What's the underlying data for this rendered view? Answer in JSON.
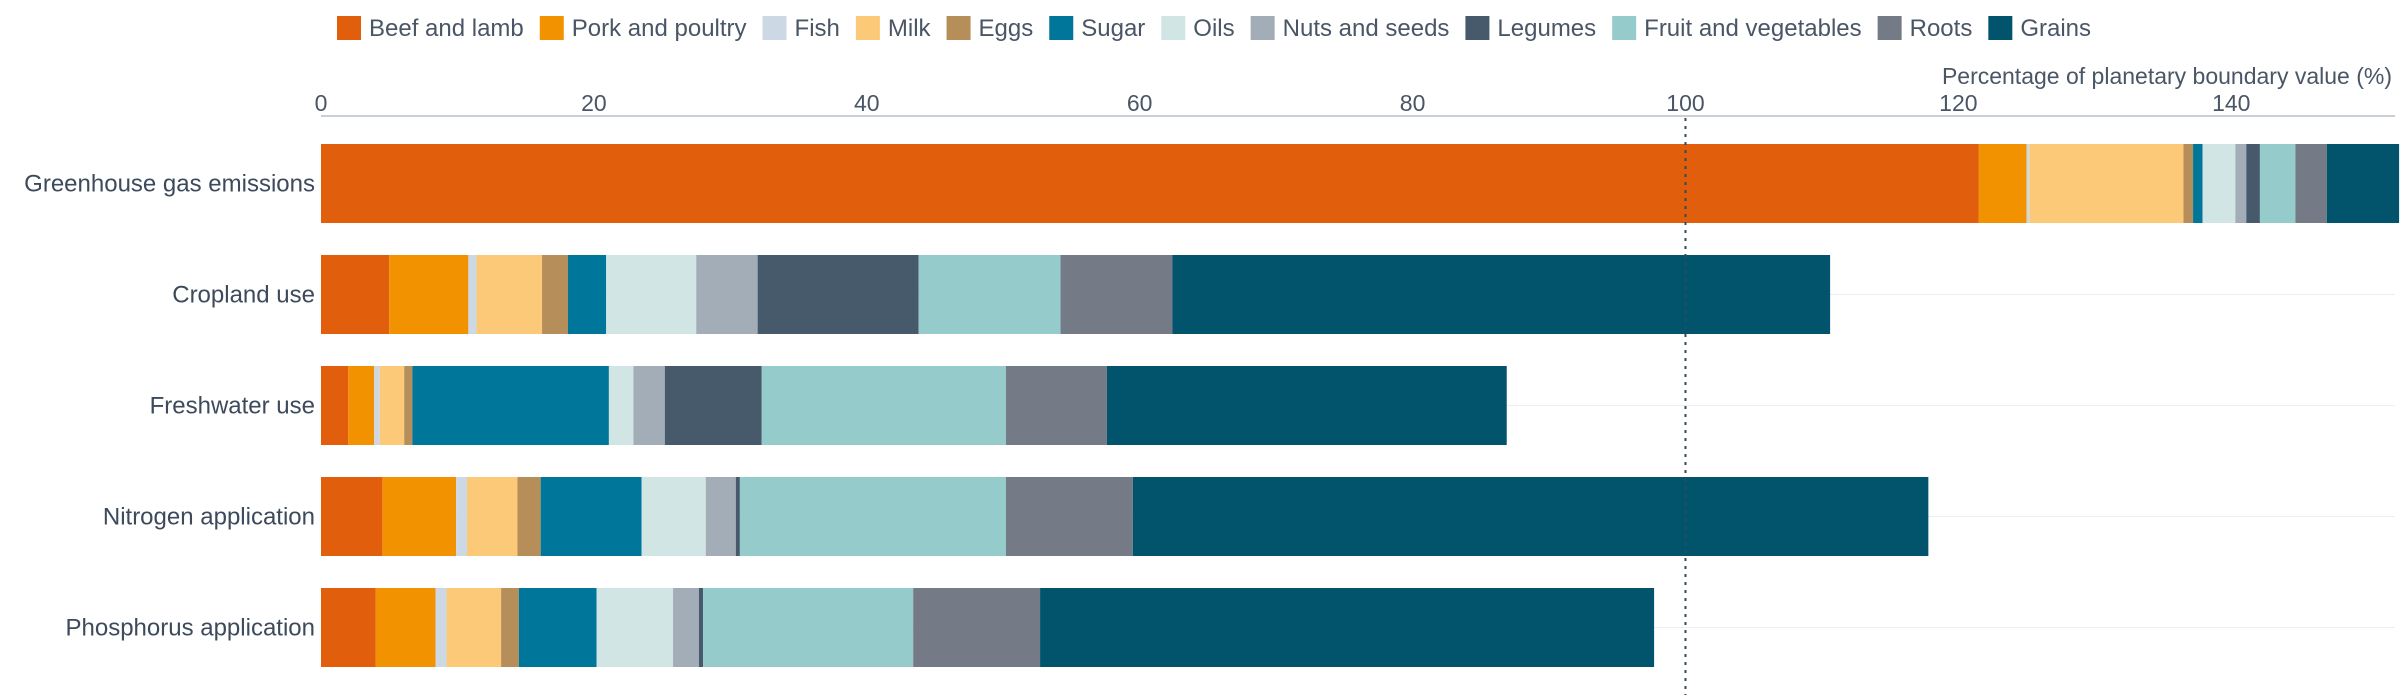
{
  "chart_data": {
    "type": "bar",
    "orientation": "horizontal",
    "stacked": true,
    "xlabel": "Percentage of planetary boundary value (%)",
    "xlim": [
      0,
      152
    ],
    "xticks": [
      0,
      20,
      40,
      60,
      80,
      100,
      120,
      140
    ],
    "reference_line": {
      "value": 100,
      "style": "dotted"
    },
    "legend_position": "top",
    "categories": [
      "Greenhouse gas emissions",
      "Cropland use",
      "Freshwater use",
      "Nitrogen application",
      "Phosphorus application"
    ],
    "series": [
      {
        "name": "Beef and lamb",
        "color": "#e05e0c",
        "values": [
          121.5,
          5.0,
          2.0,
          4.5,
          4.0
        ]
      },
      {
        "name": "Pork and poultry",
        "color": "#f39200",
        "values": [
          3.5,
          5.8,
          1.9,
          5.4,
          4.4
        ]
      },
      {
        "name": "Fish",
        "color": "#ccd8e4",
        "values": [
          0.2,
          0.6,
          0.4,
          0.8,
          0.8
        ]
      },
      {
        "name": "Milk",
        "color": "#fcc978",
        "values": [
          11.3,
          4.8,
          1.8,
          3.7,
          4.0
        ]
      },
      {
        "name": "Eggs",
        "color": "#b58e59",
        "values": [
          0.7,
          1.9,
          0.6,
          1.7,
          1.3
        ]
      },
      {
        "name": "Sugar",
        "color": "#00779a",
        "values": [
          0.7,
          2.8,
          14.4,
          7.4,
          5.7
        ]
      },
      {
        "name": "Oils",
        "color": "#d2e5e5",
        "values": [
          2.4,
          6.6,
          1.8,
          4.7,
          5.6
        ]
      },
      {
        "name": "Nuts and seeds",
        "color": "#a2adb8",
        "values": [
          0.8,
          4.5,
          2.3,
          2.2,
          1.9
        ]
      },
      {
        "name": "Legumes",
        "color": "#475a6c",
        "values": [
          1.0,
          11.8,
          7.1,
          0.3,
          0.3
        ]
      },
      {
        "name": "Fruit and vegetables",
        "color": "#95cbca",
        "values": [
          2.6,
          10.4,
          17.9,
          19.5,
          15.4
        ]
      },
      {
        "name": "Roots",
        "color": "#747a86",
        "values": [
          2.3,
          8.2,
          7.4,
          9.3,
          9.3
        ]
      },
      {
        "name": "Grains",
        "color": "#02536c",
        "values": [
          5.3,
          48.2,
          29.3,
          58.3,
          45.0
        ]
      }
    ]
  }
}
